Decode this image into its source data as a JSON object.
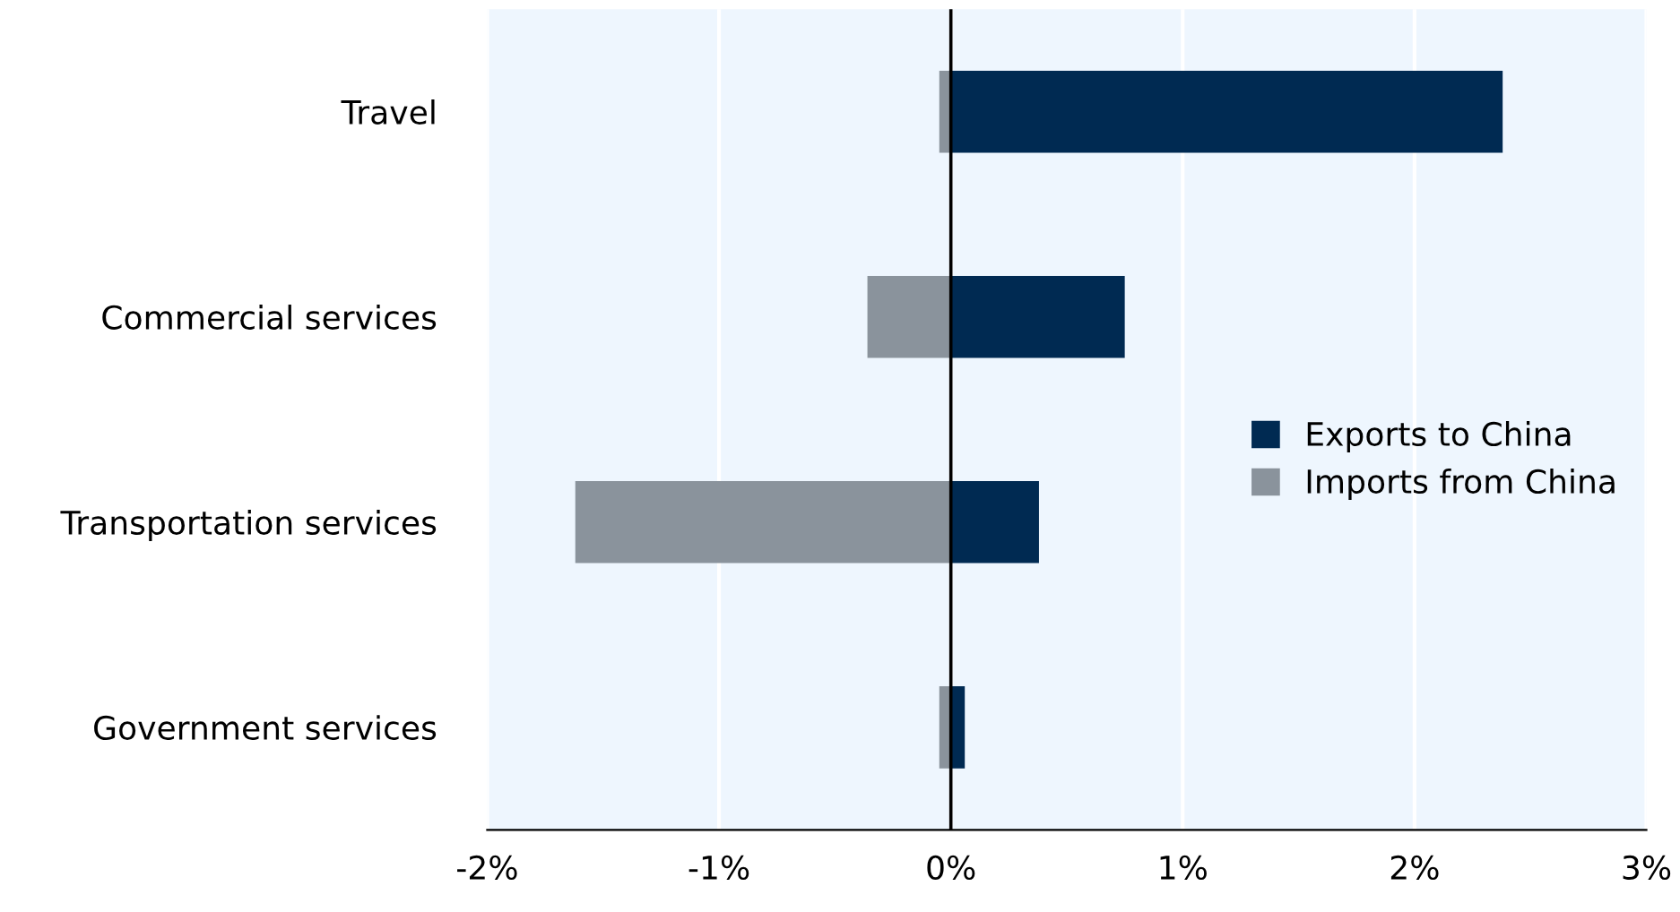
{
  "chart_data": {
    "type": "bar",
    "orientation": "horizontal",
    "stacked": true,
    "categories": [
      "Travel",
      "Commercial services",
      "Transportation services",
      "Government services"
    ],
    "series": [
      {
        "name": "Exports to China",
        "color": "#002a52",
        "values": [
          2.38,
          0.75,
          0.38,
          0.06
        ]
      },
      {
        "name": "Imports from China",
        "color": "#8a939c",
        "values": [
          -0.05,
          -0.36,
          -1.62,
          -0.05
        ]
      }
    ],
    "xlim": [
      -2,
      3
    ],
    "xticks": [
      {
        "value": -2,
        "label": "-2%"
      },
      {
        "value": -1,
        "label": "-1%"
      },
      {
        "value": 0,
        "label": "0%"
      },
      {
        "value": 1,
        "label": "1%"
      },
      {
        "value": 2,
        "label": "2%"
      },
      {
        "value": 3,
        "label": "3%"
      }
    ],
    "ref_lines": [
      {
        "axis": "x",
        "value": 0,
        "color": "#000000"
      }
    ],
    "grid": "x",
    "legend": "right"
  }
}
